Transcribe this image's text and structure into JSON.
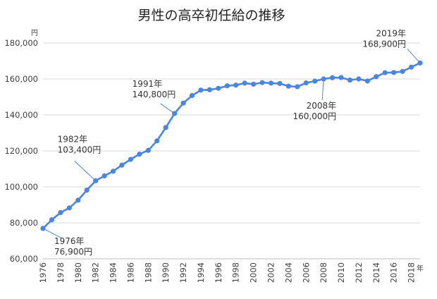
{
  "chart_data": {
    "type": "line",
    "title": "男性の高卒初任給の推移",
    "y_unit": "円",
    "x_unit": "年",
    "color": "#4a86e0",
    "ylim": [
      60000,
      180000
    ],
    "y_ticks": [
      60000,
      80000,
      100000,
      120000,
      140000,
      160000,
      180000
    ],
    "y_tick_labels": [
      "60,000",
      "80,000",
      "100,000",
      "120,000",
      "140,000",
      "160,000",
      "180,000"
    ],
    "xlim": [
      1976,
      2019
    ],
    "x_ticks": [
      1976,
      1978,
      1980,
      1982,
      1984,
      1986,
      1988,
      1990,
      1992,
      1994,
      1996,
      1998,
      2000,
      2002,
      2004,
      2006,
      2008,
      2010,
      2012,
      2014,
      2016,
      2018
    ],
    "x_tick_labels": [
      "1976",
      "1978",
      "1980",
      "1982",
      "1984",
      "1986",
      "1988",
      "1990",
      "1992",
      "1994",
      "1996",
      "1998",
      "2000",
      "2002",
      "2004",
      "2006",
      "2008",
      "2010",
      "2012",
      "2014",
      "2016",
      "2018"
    ],
    "grid": true,
    "legend": false,
    "x": [
      1976,
      1977,
      1978,
      1979,
      1980,
      1981,
      1982,
      1983,
      1984,
      1985,
      1986,
      1987,
      1988,
      1989,
      1990,
      1991,
      1992,
      1993,
      1994,
      1995,
      1996,
      1997,
      1998,
      1999,
      2000,
      2001,
      2002,
      2003,
      2004,
      2005,
      2006,
      2007,
      2008,
      2009,
      2010,
      2011,
      2012,
      2013,
      2014,
      2015,
      2016,
      2017,
      2018,
      2019
    ],
    "y": [
      76900,
      81700,
      85700,
      88300,
      92600,
      98200,
      103400,
      106100,
      108700,
      112100,
      115300,
      118200,
      120300,
      125600,
      133000,
      140800,
      146600,
      150800,
      153800,
      154000,
      154800,
      156200,
      156600,
      157700,
      157100,
      158000,
      157700,
      157500,
      156000,
      155700,
      157800,
      158800,
      160000,
      160700,
      160800,
      159400,
      160000,
      158900,
      161300,
      163500,
      163600,
      164200,
      166600,
      168900
    ],
    "annotations": [
      {
        "line1": "1976年",
        "line2": "76,900円",
        "x": 1976,
        "y": 76900
      },
      {
        "line1": "1982年",
        "line2": "103,400円",
        "x": 1982,
        "y": 103400
      },
      {
        "line1": "1991年",
        "line2": "140,800円",
        "x": 1991,
        "y": 140800
      },
      {
        "line1": "2008年",
        "line2": "160,000円",
        "x": 2008,
        "y": 160000
      },
      {
        "line1": "2019年",
        "line2": "168,900円",
        "x": 2019,
        "y": 168900
      }
    ]
  }
}
